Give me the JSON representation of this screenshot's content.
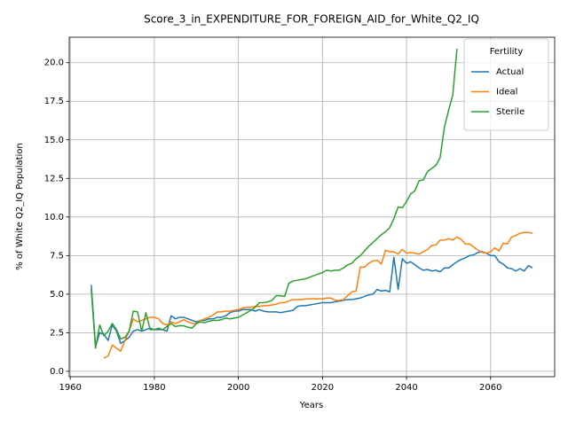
{
  "chart_data": {
    "type": "line",
    "title": "Score_3_in_EXPENDITURE_FOR_FOREIGN_AID_for_White_Q2_IQ",
    "xlabel": "Years",
    "ylabel": "% of White Q2_IQ Population",
    "legend_title": "Fertility",
    "legend_loc": "upper right",
    "grid": true,
    "xlim": [
      1959.75,
      2075.25
    ],
    "ylim": [
      -0.35,
      21.65
    ],
    "xticks": [
      1960,
      1980,
      2000,
      2020,
      2040,
      2060
    ],
    "yticks": [
      {
        "value": 0,
        "label": "0.0"
      },
      {
        "value": 2.5,
        "label": "2.5"
      },
      {
        "value": 5,
        "label": "5.0"
      },
      {
        "value": 7.5,
        "label": "7.5"
      },
      {
        "value": 10,
        "label": "10.0"
      },
      {
        "value": 12.5,
        "label": "12.5"
      },
      {
        "value": 15,
        "label": "15.0"
      },
      {
        "value": 17.5,
        "label": "17.5"
      },
      {
        "value": 20,
        "label": "20.0"
      }
    ],
    "x": [
      1965,
      1966,
      1967,
      1968,
      1969,
      1970,
      1971,
      1972,
      1973,
      1974,
      1975,
      1976,
      1977,
      1978,
      1979,
      1980,
      1981,
      1982,
      1983,
      1984,
      1985,
      1986,
      1987,
      1988,
      1989,
      1990,
      1991,
      1992,
      1993,
      1994,
      1995,
      1996,
      1997,
      1998,
      1999,
      2000,
      2001,
      2002,
      2003,
      2004,
      2005,
      2006,
      2007,
      2008,
      2009,
      2010,
      2011,
      2012,
      2013,
      2014,
      2015,
      2016,
      2017,
      2018,
      2019,
      2020,
      2021,
      2022,
      2023,
      2024,
      2025,
      2026,
      2027,
      2028,
      2029,
      2030,
      2031,
      2032,
      2033,
      2034,
      2035,
      2036,
      2037,
      2038,
      2039,
      2040,
      2041,
      2042,
      2043,
      2044,
      2045,
      2046,
      2047,
      2048,
      2049,
      2050,
      2051,
      2052,
      2053,
      2054,
      2055,
      2056,
      2057,
      2058,
      2059,
      2060,
      2061,
      2062,
      2063,
      2064,
      2065,
      2066,
      2067,
      2068,
      2069,
      2070
    ],
    "series": [
      {
        "name": "Actual",
        "color": "#1f77b4",
        "values": [
          5.6,
          1.6,
          2.5,
          2.4,
          2.0,
          3.0,
          2.6,
          1.8,
          2.0,
          2.2,
          2.6,
          2.7,
          2.6,
          2.7,
          2.8,
          2.7,
          2.7,
          2.7,
          2.6,
          3.6,
          3.4,
          3.5,
          3.5,
          3.4,
          3.3,
          3.2,
          3.3,
          3.3,
          3.4,
          3.4,
          3.5,
          3.5,
          3.6,
          3.8,
          3.9,
          3.9,
          4.0,
          4.0,
          4.0,
          3.9,
          4.0,
          3.9,
          3.85,
          3.85,
          3.85,
          3.8,
          3.85,
          3.9,
          3.95,
          4.2,
          4.25,
          4.25,
          4.3,
          4.35,
          4.4,
          4.45,
          4.45,
          4.45,
          4.5,
          4.55,
          4.6,
          4.65,
          4.65,
          4.7,
          4.75,
          4.85,
          4.95,
          5.0,
          5.3,
          5.2,
          5.25,
          5.15,
          7.4,
          5.3,
          7.3,
          7.0,
          7.1,
          6.9,
          6.7,
          6.55,
          6.6,
          6.5,
          6.55,
          6.45,
          6.7,
          6.7,
          6.9,
          7.1,
          7.25,
          7.35,
          7.5,
          7.55,
          7.7,
          7.75,
          7.65,
          7.5,
          7.5,
          7.1,
          6.95,
          6.7,
          6.65,
          6.5,
          6.65,
          6.5,
          6.85,
          6.7
        ]
      },
      {
        "name": "Ideal",
        "color": "#ff7f0e",
        "values": [
          null,
          null,
          null,
          0.85,
          1.0,
          1.7,
          1.5,
          1.3,
          2.0,
          2.6,
          3.4,
          3.2,
          3.3,
          3.4,
          3.5,
          3.5,
          3.4,
          3.1,
          3.0,
          3.2,
          3.1,
          3.2,
          3.35,
          3.2,
          3.1,
          3.1,
          3.3,
          3.4,
          3.5,
          3.65,
          3.85,
          3.85,
          3.9,
          3.9,
          3.95,
          4.0,
          4.1,
          4.15,
          4.15,
          4.2,
          4.2,
          4.25,
          4.25,
          4.3,
          4.35,
          4.45,
          4.45,
          4.55,
          4.65,
          4.65,
          4.65,
          4.7,
          4.7,
          4.7,
          4.7,
          4.7,
          4.75,
          4.75,
          4.6,
          4.6,
          4.65,
          4.9,
          5.15,
          5.2,
          6.75,
          6.75,
          7.0,
          7.15,
          7.2,
          6.95,
          7.85,
          7.75,
          7.75,
          7.6,
          7.9,
          7.65,
          7.7,
          7.65,
          7.6,
          7.75,
          7.9,
          8.15,
          8.2,
          8.5,
          8.5,
          8.6,
          8.5,
          8.7,
          8.55,
          8.25,
          8.25,
          8.05,
          7.85,
          7.7,
          7.65,
          7.75,
          8.0,
          7.8,
          8.3,
          8.25,
          8.7,
          8.8,
          8.95,
          9.0,
          9.0,
          8.95
        ]
      },
      {
        "name": "Sterile",
        "color": "#2ca02c",
        "values": [
          5.3,
          1.5,
          3.0,
          2.3,
          2.6,
          3.1,
          2.7,
          2.1,
          2.2,
          2.6,
          3.9,
          3.85,
          2.6,
          3.8,
          2.7,
          2.7,
          2.8,
          2.7,
          2.9,
          3.1,
          2.9,
          2.95,
          2.95,
          2.85,
          2.8,
          3.1,
          3.2,
          3.15,
          3.25,
          3.3,
          3.3,
          3.35,
          3.45,
          3.4,
          3.45,
          3.5,
          3.65,
          3.8,
          3.95,
          4.15,
          4.45,
          4.45,
          4.5,
          4.6,
          4.9,
          4.9,
          4.85,
          5.7,
          5.85,
          5.9,
          5.95,
          6.0,
          6.1,
          6.2,
          6.3,
          6.4,
          6.55,
          6.5,
          6.55,
          6.55,
          6.7,
          6.9,
          7.0,
          7.3,
          7.5,
          7.8,
          8.1,
          8.35,
          8.6,
          8.85,
          9.05,
          9.3,
          9.9,
          10.65,
          10.6,
          11.0,
          11.5,
          11.7,
          12.35,
          12.4,
          12.95,
          13.15,
          13.35,
          13.85,
          15.8,
          16.9,
          17.9,
          20.9,
          null,
          null,
          null,
          null,
          null,
          null,
          null,
          null,
          null,
          null,
          null,
          null,
          null,
          null,
          null,
          null,
          null,
          null
        ]
      }
    ]
  }
}
